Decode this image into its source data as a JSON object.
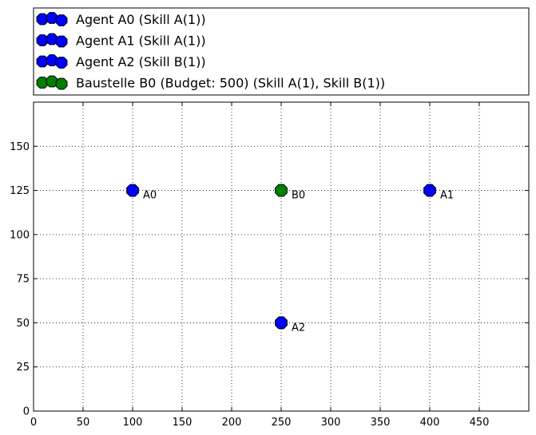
{
  "chart_data": {
    "type": "scatter",
    "title": "",
    "xlabel": "",
    "ylabel": "",
    "xlim": [
      0,
      500
    ],
    "ylim": [
      0,
      175
    ],
    "xticks": [
      0,
      50,
      100,
      150,
      200,
      250,
      300,
      350,
      400,
      450
    ],
    "yticks": [
      0,
      25,
      50,
      75,
      100,
      125,
      150
    ],
    "grid": true,
    "legend_placement": "top",
    "series": [
      {
        "name": "Agent A0 (Skill A(1))",
        "color": "#0000ff",
        "points": [
          {
            "x": 100,
            "y": 125,
            "label": "A0"
          }
        ]
      },
      {
        "name": "Agent A1 (Skill A(1))",
        "color": "#0000ff",
        "points": [
          {
            "x": 400,
            "y": 125,
            "label": "A1"
          }
        ]
      },
      {
        "name": "Agent A2 (Skill B(1))",
        "color": "#0000ff",
        "points": [
          {
            "x": 250,
            "y": 50,
            "label": "A2"
          }
        ]
      },
      {
        "name": "Baustelle B0 (Budget: 500) (Skill A(1), Skill B(1))",
        "color": "#008000",
        "points": [
          {
            "x": 250,
            "y": 125,
            "label": "B0"
          }
        ]
      }
    ]
  }
}
